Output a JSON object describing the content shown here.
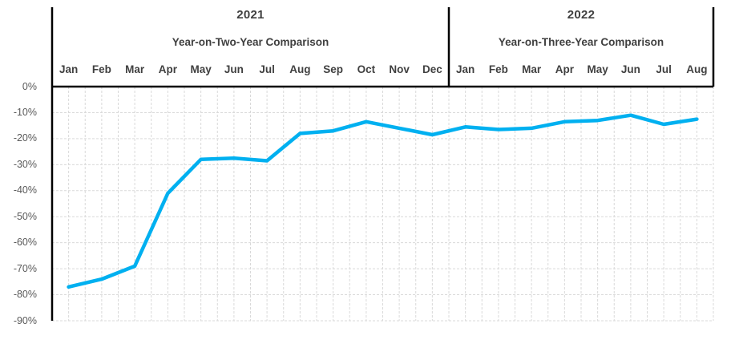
{
  "chart_data": {
    "type": "line",
    "title_groups": [
      {
        "year": "2021",
        "subtitle": "Year-on-Two-Year Comparison",
        "span": 12
      },
      {
        "year": "2022",
        "subtitle": "Year-on-Three-Year Comparison",
        "span": 8
      }
    ],
    "categories": [
      "Jan",
      "Feb",
      "Mar",
      "Apr",
      "May",
      "Jun",
      "Jul",
      "Aug",
      "Sep",
      "Oct",
      "Nov",
      "Dec",
      "Jan",
      "Feb",
      "Mar",
      "Apr",
      "May",
      "Jun",
      "Jul",
      "Aug"
    ],
    "series": [
      {
        "values": [
          -77,
          -74,
          -69,
          -41,
          -28,
          -27.5,
          -28.5,
          -18,
          -17,
          -13.5,
          -16,
          -18.5,
          -15.5,
          -16.5,
          -16,
          -13.5,
          -13,
          -11,
          -14.5,
          -12.5
        ]
      }
    ],
    "y_tick_labels": [
      "0%",
      "-10%",
      "-20%",
      "-30%",
      "-40%",
      "-50%",
      "-60%",
      "-70%",
      "-80%",
      "-90%"
    ],
    "ylim": [
      -90,
      0
    ],
    "y_tick_step": 10,
    "legend": "none",
    "grid": {
      "horizontal": "every 10%",
      "vertical": "every half month",
      "style": "dashed"
    },
    "colors": {
      "line": "#00b0f0",
      "axis": "#000000",
      "grid": "#d9d9d9",
      "axis_text": "#595959",
      "header_text": "#404040",
      "background": "#ffffff"
    }
  }
}
